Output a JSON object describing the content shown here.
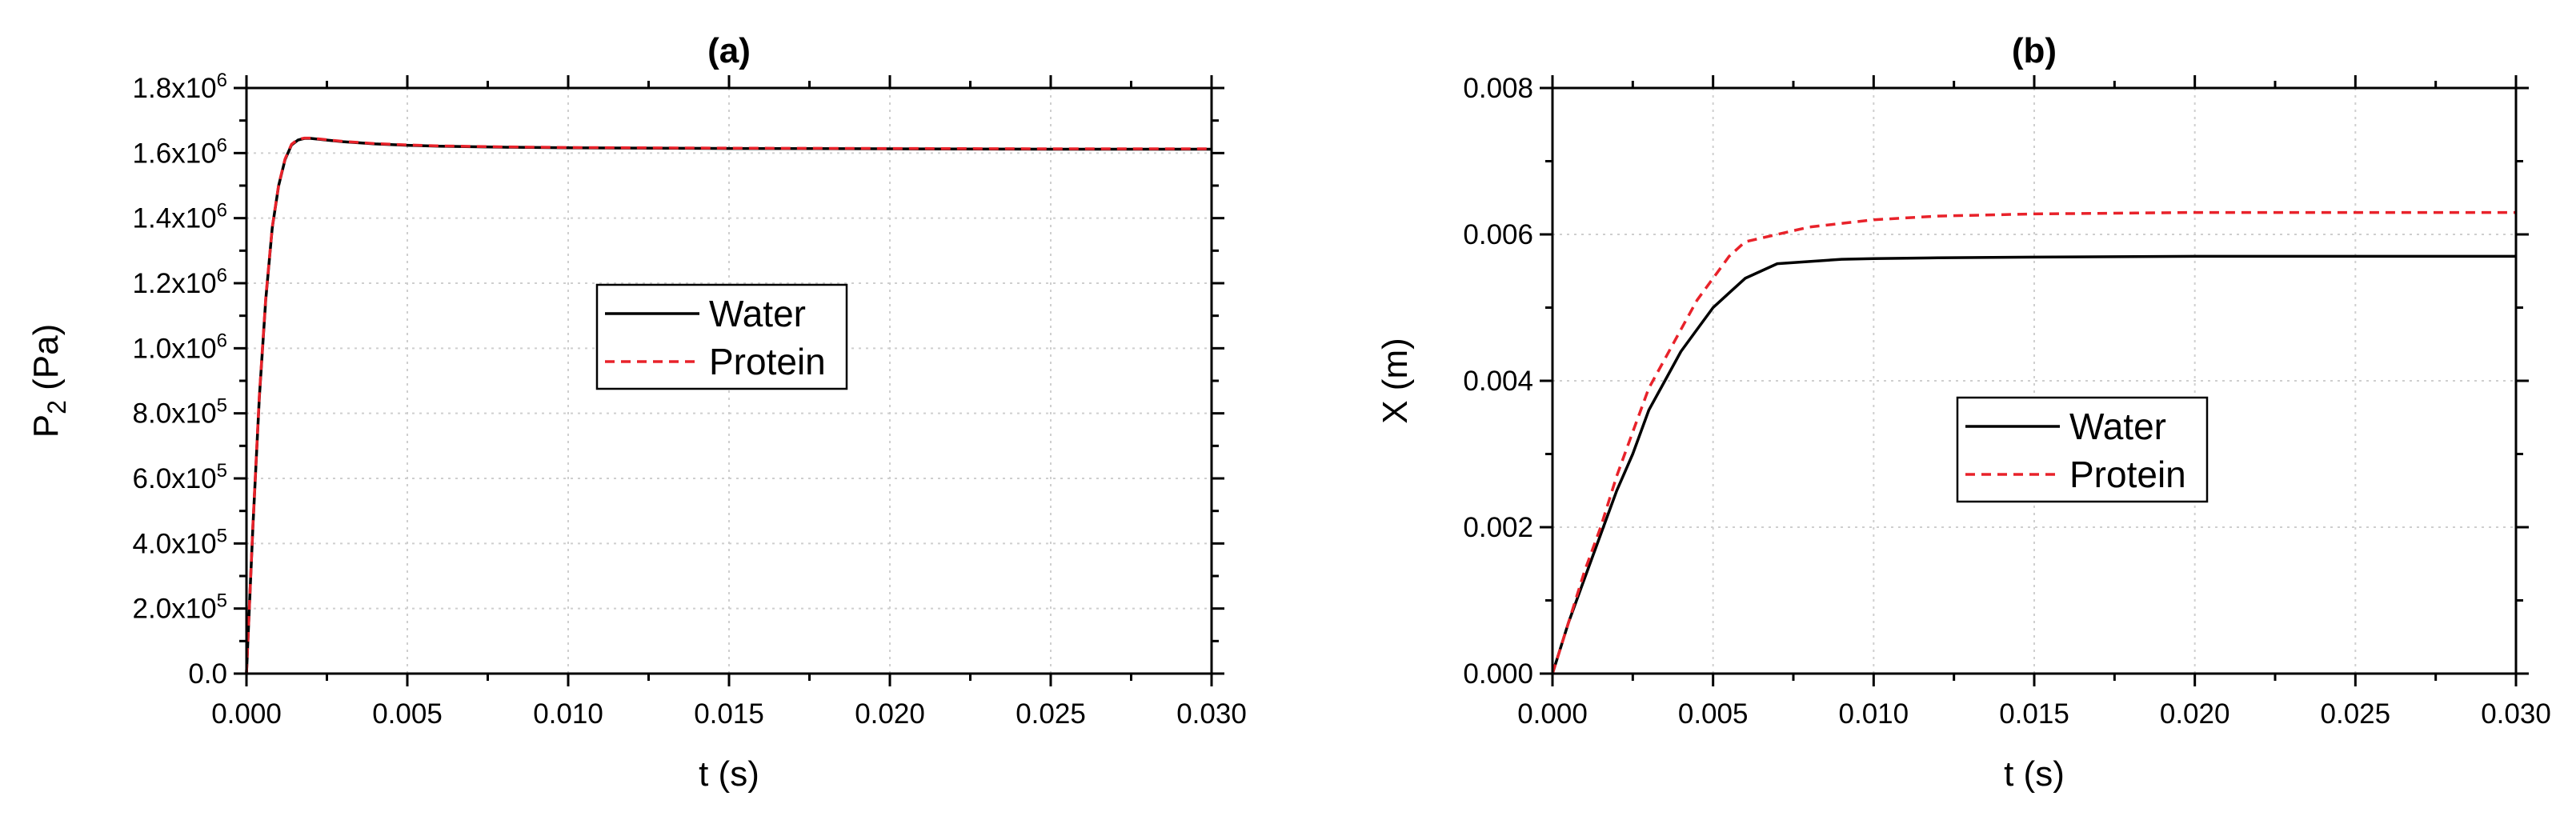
{
  "chart_data": [
    {
      "type": "line",
      "title": "(a)",
      "xlabel": "t (s)",
      "ylabel_main": "P",
      "ylabel_sub": "2",
      "ylabel_unit": " (Pa)",
      "xlim": [
        0,
        0.03
      ],
      "ylim": [
        0,
        1800000
      ],
      "grid": true,
      "legend_position": "center",
      "x_ticks": [
        "0.000",
        "0.005",
        "0.010",
        "0.015",
        "0.020",
        "0.025",
        "0.030"
      ],
      "y_ticks": [
        {
          "base": "0.0",
          "exp": ""
        },
        {
          "base": "2.0x10",
          "exp": "5"
        },
        {
          "base": "4.0x10",
          "exp": "5"
        },
        {
          "base": "6.0x10",
          "exp": "5"
        },
        {
          "base": "8.0x10",
          "exp": "5"
        },
        {
          "base": "1.0x10",
          "exp": "6"
        },
        {
          "base": "1.2x10",
          "exp": "6"
        },
        {
          "base": "1.4x10",
          "exp": "6"
        },
        {
          "base": "1.6x10",
          "exp": "6"
        },
        {
          "base": "1.8x10",
          "exp": "6"
        }
      ],
      "series": [
        {
          "name": "Water",
          "color": "#000000",
          "dashed": false,
          "x": [
            0,
            0.0002,
            0.0004,
            0.0006,
            0.0008,
            0.001,
            0.0012,
            0.0014,
            0.0016,
            0.0018,
            0.002,
            0.0025,
            0.003,
            0.004,
            0.005,
            0.006,
            0.008,
            0.01,
            0.015,
            0.02,
            0.025,
            0.03
          ],
          "y": [
            0,
            450000,
            850000,
            1150000,
            1370000,
            1500000,
            1580000,
            1625000,
            1640000,
            1645000,
            1645000,
            1640000,
            1635000,
            1628000,
            1624000,
            1621000,
            1618000,
            1616000,
            1614000,
            1613000,
            1612000,
            1612000
          ]
        },
        {
          "name": "Protein",
          "color": "#e8222a",
          "dashed": true,
          "x": [
            0,
            0.0002,
            0.0004,
            0.0006,
            0.0008,
            0.001,
            0.0012,
            0.0014,
            0.0016,
            0.0018,
            0.002,
            0.0025,
            0.003,
            0.004,
            0.005,
            0.006,
            0.008,
            0.01,
            0.015,
            0.02,
            0.025,
            0.03
          ],
          "y": [
            0,
            455000,
            855000,
            1155000,
            1372000,
            1502000,
            1582000,
            1627000,
            1642000,
            1646000,
            1646000,
            1641000,
            1636000,
            1629000,
            1625000,
            1622000,
            1619000,
            1617000,
            1615000,
            1614000,
            1613000,
            1613000
          ]
        }
      ]
    },
    {
      "type": "line",
      "title": "(b)",
      "xlabel": "t (s)",
      "ylabel_main": "X (m)",
      "ylabel_sub": "",
      "ylabel_unit": "",
      "xlim": [
        0,
        0.03
      ],
      "ylim": [
        0,
        0.008
      ],
      "grid": true,
      "legend_position": "center",
      "x_ticks": [
        "0.000",
        "0.005",
        "0.010",
        "0.015",
        "0.020",
        "0.025",
        "0.030"
      ],
      "y_ticks": [
        {
          "base": "0.000",
          "exp": ""
        },
        {
          "base": "0.002",
          "exp": ""
        },
        {
          "base": "0.004",
          "exp": ""
        },
        {
          "base": "0.006",
          "exp": ""
        },
        {
          "base": "0.008",
          "exp": ""
        }
      ],
      "series": [
        {
          "name": "Water",
          "color": "#000000",
          "dashed": false,
          "x": [
            0,
            0.0005,
            0.001,
            0.0015,
            0.002,
            0.0025,
            0.003,
            0.0035,
            0.004,
            0.0045,
            0.005,
            0.0055,
            0.006,
            0.007,
            0.008,
            0.009,
            0.01,
            0.012,
            0.015,
            0.02,
            0.025,
            0.03
          ],
          "y": [
            0,
            0.0007,
            0.0013,
            0.0019,
            0.0025,
            0.003,
            0.0036,
            0.004,
            0.0044,
            0.0047,
            0.005,
            0.0052,
            0.0054,
            0.0056,
            0.00563,
            0.00566,
            0.00567,
            0.00568,
            0.00569,
            0.0057,
            0.0057,
            0.0057
          ]
        },
        {
          "name": "Protein",
          "color": "#e8222a",
          "dashed": true,
          "x": [
            0,
            0.0005,
            0.001,
            0.0015,
            0.002,
            0.0025,
            0.003,
            0.0035,
            0.004,
            0.0045,
            0.005,
            0.0055,
            0.006,
            0.007,
            0.008,
            0.009,
            0.01,
            0.012,
            0.015,
            0.02,
            0.025,
            0.03
          ],
          "y": [
            0,
            0.0007,
            0.0014,
            0.002,
            0.0027,
            0.0033,
            0.0039,
            0.0043,
            0.0047,
            0.0051,
            0.0054,
            0.0057,
            0.0059,
            0.006,
            0.0061,
            0.00615,
            0.0062,
            0.00625,
            0.00628,
            0.0063,
            0.0063,
            0.0063
          ]
        }
      ]
    }
  ]
}
